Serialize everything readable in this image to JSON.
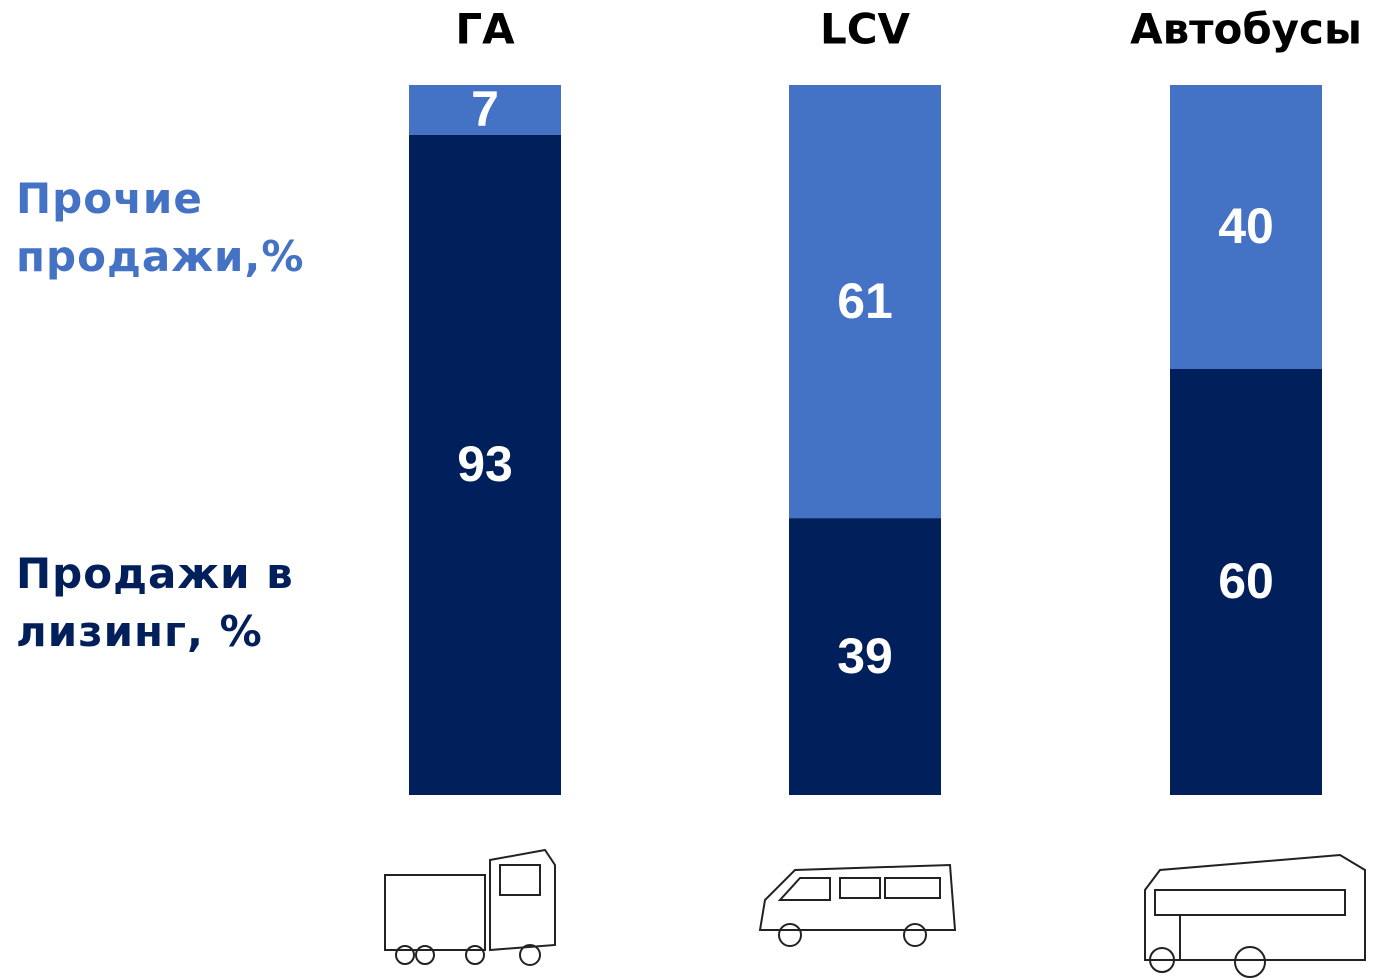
{
  "chart_data": {
    "type": "stacked_bar",
    "categories": [
      "ГА",
      "LCV",
      "Автобусы"
    ],
    "series": [
      {
        "name": "Продажи в лизинг, %",
        "color": "#001f5b",
        "values": [
          93,
          39,
          60
        ]
      },
      {
        "name": "Прочие продажи,%",
        "color": "#4472c4",
        "values": [
          7,
          61,
          40
        ]
      }
    ]
  }
}
